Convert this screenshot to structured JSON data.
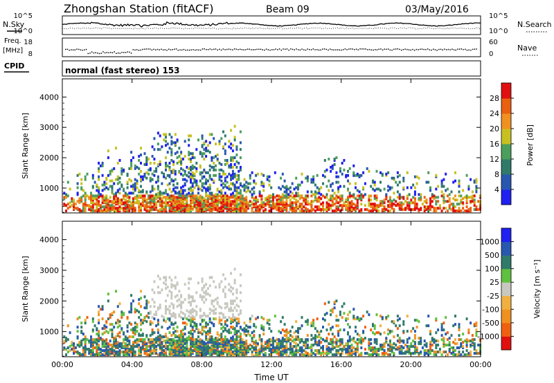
{
  "header": {
    "station": "Zhongshan Station (fitACF)",
    "beam": "Beam 09",
    "date": "03/May/2016"
  },
  "panel_labels": {
    "noise_sky": "N.Sky",
    "noise_search": "N.Search",
    "freq": "Freq.",
    "freq_unit": "[MHz]",
    "nave": "Nave",
    "cpid": "CPID",
    "cpid_value": "normal (fast stereo) 153"
  },
  "noise_axis_ticks": [
    "10^5",
    "10^0"
  ],
  "freq_axis_ticks": [
    "18",
    "8"
  ],
  "nave_axis_ticks": [
    "60",
    "0"
  ],
  "colors": {
    "power_scale": [
      "#2020f0",
      "#2857b0",
      "#307a6a",
      "#4c9e5c",
      "#c8c020",
      "#f09020",
      "#e86010",
      "#e01010"
    ],
    "velocity_scale": [
      "#e01010",
      "#f06010",
      "#f09020",
      "#f0b040",
      "#c8c8c0",
      "#60c040",
      "#307a6a",
      "#2857b0",
      "#2020f0"
    ]
  },
  "chart_data": [
    {
      "type": "heatmap",
      "name": "power",
      "ylabel": "Slant Range [km]",
      "ylim": [
        180,
        4600
      ],
      "y_ticks": [
        "1000",
        "2000",
        "3000",
        "4000"
      ],
      "x_ticks": [
        "00:00",
        "04:00",
        "08:00",
        "12:00",
        "16:00",
        "20:00",
        "00:00"
      ],
      "colorbar_label": "Power [dB]",
      "colorbar_ticks": [
        "4",
        "8",
        "12",
        "16",
        "20",
        "24",
        "28"
      ]
    },
    {
      "type": "heatmap",
      "name": "velocity",
      "ylabel": "Slant Range [km]",
      "ylim": [
        180,
        4600
      ],
      "y_ticks": [
        "1000",
        "2000",
        "3000",
        "4000"
      ],
      "x_ticks": [
        "00:00",
        "04:00",
        "08:00",
        "12:00",
        "16:00",
        "20:00",
        "00:00"
      ],
      "xlabel": "Time UT",
      "colorbar_label": "Velocity [m s⁻¹]",
      "colorbar_ticks": [
        "-1000",
        "-500",
        "-100",
        "-25",
        "25",
        "100",
        "500",
        "1000"
      ]
    }
  ]
}
